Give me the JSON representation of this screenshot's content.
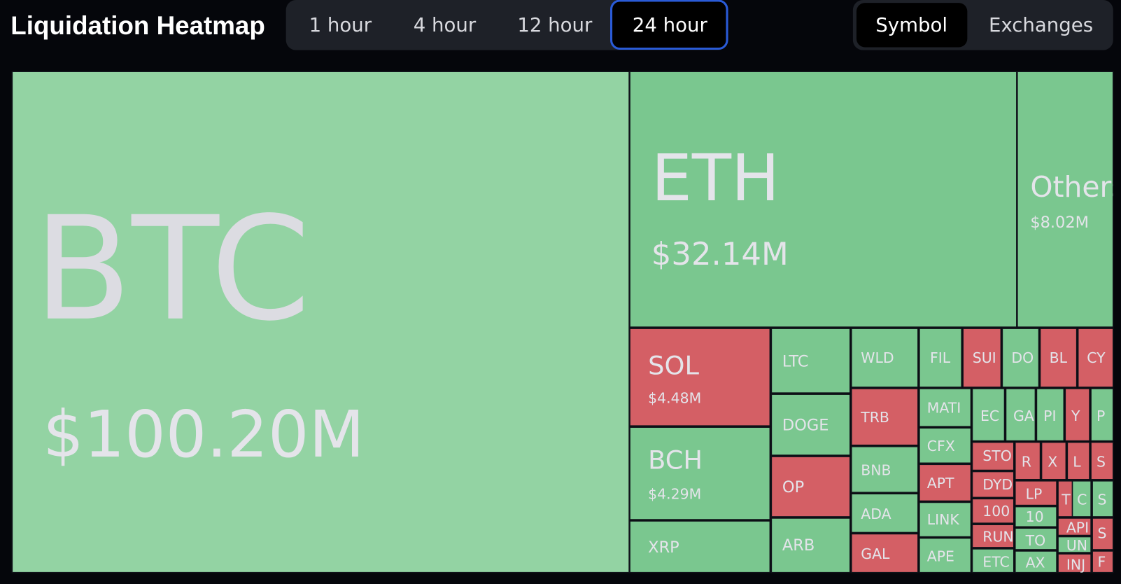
{
  "header": {
    "title": "Liquidation Heatmap",
    "time_tabs": [
      "1 hour",
      "4 hour",
      "12 hour",
      "24 hour"
    ],
    "selected_time_tab": 3,
    "view_tabs": [
      "Symbol",
      "Exchanges"
    ],
    "selected_view_tab": 0
  },
  "treemap": {
    "tiles": [
      {
        "label": "BTC",
        "value_label": "$100.20M",
        "color": "#93d3a3"
      },
      {
        "label": "ETH",
        "value_label": "$32.14M",
        "color": "#7ac78f"
      },
      {
        "label": "Others",
        "value_label": "$8.02M",
        "color": "#7ac78f"
      },
      {
        "label": "SOL",
        "value_label": "$4.48M",
        "color": "#d45f65"
      },
      {
        "label": "BCH",
        "value_label": "$4.29M",
        "color": "#7ac78f"
      },
      {
        "label": "XRP",
        "color": "#7ac78f"
      },
      {
        "label": "LTC",
        "color": "#7ac78f"
      },
      {
        "label": "DOGE",
        "color": "#7ac78f"
      },
      {
        "label": "OP",
        "color": "#d45f65"
      },
      {
        "label": "ARB",
        "color": "#7ac78f"
      },
      {
        "label": "WLD",
        "color": "#7ac78f"
      },
      {
        "label": "TRB",
        "color": "#d45f65"
      },
      {
        "label": "BNB",
        "color": "#7ac78f"
      },
      {
        "label": "ADA",
        "color": "#7ac78f"
      },
      {
        "label": "GAL",
        "color": "#d45f65"
      },
      {
        "label": "FIL",
        "color": "#7ac78f"
      },
      {
        "label": "SUI",
        "color": "#d45f65"
      },
      {
        "label": "DO",
        "color": "#7ac78f"
      },
      {
        "label": "BL",
        "color": "#d45f65"
      },
      {
        "label": "CY",
        "color": "#d45f65"
      },
      {
        "label": "MATI",
        "color": "#7ac78f"
      },
      {
        "label": "CFX",
        "color": "#7ac78f"
      },
      {
        "label": "APT",
        "color": "#d45f65"
      },
      {
        "label": "LINK",
        "color": "#7ac78f"
      },
      {
        "label": "APE",
        "color": "#7ac78f"
      },
      {
        "label": "EC",
        "color": "#7ac78f"
      },
      {
        "label": "GA",
        "color": "#7ac78f"
      },
      {
        "label": "PI",
        "color": "#7ac78f"
      },
      {
        "label": "Y",
        "color": "#d45f65"
      },
      {
        "label": "P",
        "color": "#7ac78f"
      },
      {
        "label": "STO",
        "color": "#d45f65"
      },
      {
        "label": "DYD",
        "color": "#d45f65"
      },
      {
        "label": "100",
        "color": "#d45f65"
      },
      {
        "label": "RUN",
        "color": "#d45f65"
      },
      {
        "label": "ETC",
        "color": "#7ac78f"
      },
      {
        "label": "R",
        "color": "#d45f65"
      },
      {
        "label": "X",
        "color": "#d45f65"
      },
      {
        "label": "L",
        "color": "#d45f65"
      },
      {
        "label": "S",
        "color": "#d45f65"
      },
      {
        "label": "LP",
        "color": "#d45f65"
      },
      {
        "label": "10",
        "color": "#7ac78f"
      },
      {
        "label": "TO",
        "color": "#7ac78f"
      },
      {
        "label": "AX",
        "color": "#7ac78f"
      },
      {
        "label": "T",
        "color": "#d45f65"
      },
      {
        "label": "C",
        "color": "#7ac78f"
      },
      {
        "label": "S",
        "color": "#7ac78f"
      },
      {
        "label": "API",
        "color": "#d45f65"
      },
      {
        "label": "UN",
        "color": "#7ac78f"
      },
      {
        "label": "INJ",
        "color": "#d45f65"
      },
      {
        "label": "S",
        "color": "#d45f65"
      },
      {
        "label": "F",
        "color": "#d45f65"
      }
    ]
  }
}
